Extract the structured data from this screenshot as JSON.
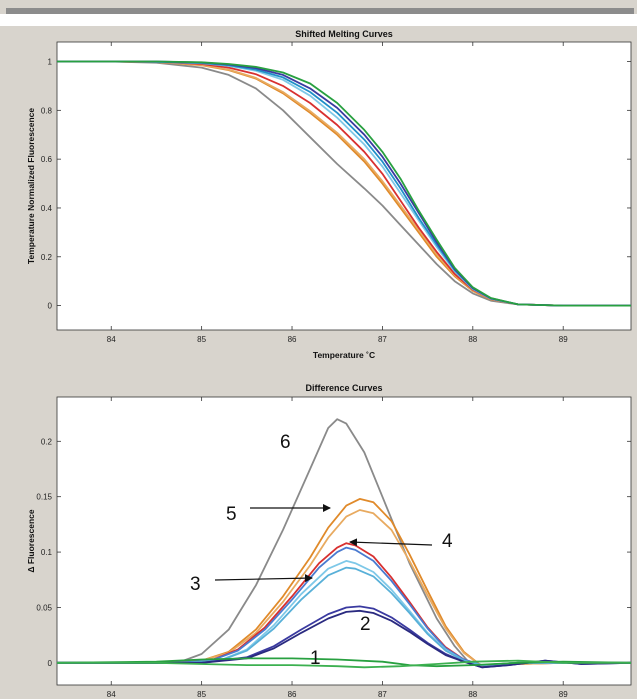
{
  "chart_data": [
    {
      "type": "line",
      "title": "Shifted Melting Curves",
      "xlabel": "Temperature ˚C",
      "ylabel": "Temperature Normalized Fluorescence",
      "xlim": [
        83.4,
        89.75
      ],
      "ylim": [
        -0.1,
        1.08
      ],
      "xticks": [
        "84",
        "85",
        "86",
        "87",
        "88",
        "89"
      ],
      "yticks": [
        "0",
        "0.2",
        "0.4",
        "0.6",
        "0.8",
        "1"
      ],
      "grid": false,
      "series": [
        {
          "color": "#8a8a8a",
          "x": [
            83.4,
            84,
            84.5,
            85,
            85.3,
            85.6,
            85.9,
            86.2,
            86.5,
            86.8,
            87,
            87.2,
            87.4,
            87.6,
            87.8,
            88,
            88.2,
            88.5,
            89,
            89.75
          ],
          "y": [
            1,
            1,
            0.995,
            0.975,
            0.945,
            0.89,
            0.8,
            0.69,
            0.58,
            0.48,
            0.41,
            0.33,
            0.25,
            0.17,
            0.1,
            0.05,
            0.02,
            0.005,
            0,
            0
          ]
        },
        {
          "color": "#e08a2a",
          "x": [
            83.4,
            84,
            84.5,
            85,
            85.3,
            85.6,
            85.9,
            86.2,
            86.5,
            86.8,
            87,
            87.2,
            87.4,
            87.6,
            87.8,
            88,
            88.2,
            88.5,
            89,
            89.75
          ],
          "y": [
            1,
            1,
            0.998,
            0.985,
            0.965,
            0.93,
            0.87,
            0.79,
            0.7,
            0.59,
            0.5,
            0.4,
            0.3,
            0.2,
            0.12,
            0.06,
            0.025,
            0.005,
            0,
            0
          ]
        },
        {
          "color": "#e8aa60",
          "x": [
            83.4,
            84,
            84.5,
            85,
            85.3,
            85.6,
            85.9,
            86.2,
            86.5,
            86.8,
            87,
            87.2,
            87.4,
            87.6,
            87.8,
            88,
            88.2,
            88.5,
            89,
            89.75
          ],
          "y": [
            1,
            1,
            0.998,
            0.986,
            0.967,
            0.933,
            0.875,
            0.797,
            0.708,
            0.6,
            0.51,
            0.41,
            0.31,
            0.21,
            0.125,
            0.062,
            0.026,
            0.005,
            0,
            0
          ]
        },
        {
          "color": "#d83030",
          "x": [
            83.4,
            84,
            84.5,
            85,
            85.3,
            85.6,
            85.9,
            86.2,
            86.5,
            86.8,
            87,
            87.2,
            87.4,
            87.6,
            87.8,
            88,
            88.2,
            88.5,
            89,
            89.75
          ],
          "y": [
            1,
            1,
            0.999,
            0.99,
            0.975,
            0.948,
            0.9,
            0.83,
            0.74,
            0.63,
            0.54,
            0.43,
            0.32,
            0.22,
            0.13,
            0.065,
            0.027,
            0.005,
            0,
            0
          ]
        },
        {
          "color": "#7ec8e8",
          "x": [
            83.4,
            84,
            84.5,
            85,
            85.3,
            85.6,
            85.9,
            86.2,
            86.5,
            86.8,
            87,
            87.2,
            87.4,
            87.6,
            87.8,
            88,
            88.2,
            88.5,
            89,
            89.75
          ],
          "y": [
            1,
            1,
            0.999,
            0.993,
            0.982,
            0.962,
            0.925,
            0.86,
            0.77,
            0.66,
            0.57,
            0.46,
            0.35,
            0.24,
            0.14,
            0.068,
            0.028,
            0.005,
            0,
            0
          ]
        },
        {
          "color": "#2090c8",
          "x": [
            83.4,
            84,
            84.5,
            85,
            85.3,
            85.6,
            85.9,
            86.2,
            86.5,
            86.8,
            87,
            87.2,
            87.4,
            87.6,
            87.8,
            88,
            88.2,
            88.5,
            89,
            89.75
          ],
          "y": [
            1,
            1,
            0.999,
            0.994,
            0.985,
            0.967,
            0.935,
            0.875,
            0.79,
            0.68,
            0.59,
            0.48,
            0.36,
            0.25,
            0.145,
            0.07,
            0.029,
            0.005,
            0,
            0
          ]
        },
        {
          "color": "#3a3aa0",
          "x": [
            83.4,
            84,
            84.5,
            85,
            85.3,
            85.6,
            85.9,
            86.2,
            86.5,
            86.8,
            87,
            87.2,
            87.4,
            87.6,
            87.8,
            88,
            88.2,
            88.5,
            89,
            89.75
          ],
          "y": [
            1,
            1,
            1,
            0.996,
            0.988,
            0.973,
            0.945,
            0.89,
            0.81,
            0.7,
            0.61,
            0.5,
            0.38,
            0.26,
            0.15,
            0.072,
            0.03,
            0.005,
            0,
            0
          ]
        },
        {
          "color": "#28a040",
          "x": [
            83.4,
            84,
            84.5,
            85,
            85.3,
            85.6,
            85.9,
            86.2,
            86.5,
            86.8,
            87,
            87.2,
            87.4,
            87.6,
            87.8,
            88,
            88.2,
            88.5,
            89,
            89.75
          ],
          "y": [
            1,
            1,
            1,
            0.997,
            0.99,
            0.978,
            0.955,
            0.91,
            0.83,
            0.72,
            0.63,
            0.52,
            0.39,
            0.27,
            0.155,
            0.075,
            0.031,
            0.005,
            0,
            0
          ]
        }
      ],
      "annotations": []
    },
    {
      "type": "line",
      "title": "Difference Curves",
      "xlabel": "",
      "ylabel": "Δ Fluorescence",
      "xlim": [
        83.4,
        89.75
      ],
      "ylim": [
        -0.02,
        0.24
      ],
      "xticks": [
        "84",
        "85",
        "86",
        "87",
        "88",
        "89"
      ],
      "yticks": [
        "0",
        "0.05",
        "0.1",
        "0.15",
        "0.2"
      ],
      "grid": false,
      "series": [
        {
          "color": "#8a8a8a",
          "x": [
            83.4,
            84.5,
            84.8,
            85,
            85.3,
            85.6,
            85.9,
            86.2,
            86.4,
            86.5,
            86.6,
            86.8,
            87,
            87.3,
            87.6,
            87.8,
            87.95,
            88.1,
            88.5,
            89,
            89.75
          ],
          "y": [
            0,
            0,
            0.002,
            0.008,
            0.03,
            0.07,
            0.12,
            0.175,
            0.212,
            0.22,
            0.216,
            0.19,
            0.15,
            0.09,
            0.04,
            0.015,
            0.001,
            -0.003,
            -0.001,
            0,
            0
          ]
        },
        {
          "color": "#e08a2a",
          "x": [
            83.4,
            84.6,
            85,
            85.3,
            85.6,
            85.9,
            86.2,
            86.4,
            86.6,
            86.75,
            86.9,
            87.1,
            87.3,
            87.5,
            87.7,
            87.9,
            88.1,
            88.5,
            89,
            89.75
          ],
          "y": [
            0,
            0,
            0.002,
            0.01,
            0.03,
            0.06,
            0.095,
            0.122,
            0.142,
            0.148,
            0.145,
            0.128,
            0.098,
            0.065,
            0.033,
            0.01,
            -0.003,
            -0.001,
            0,
            0
          ]
        },
        {
          "color": "#e8aa60",
          "x": [
            83.4,
            84.6,
            85,
            85.3,
            85.6,
            85.9,
            86.2,
            86.4,
            86.6,
            86.75,
            86.9,
            87.1,
            87.3,
            87.5,
            87.7,
            87.9,
            88.1,
            88.5,
            89,
            89.75
          ],
          "y": [
            0,
            0,
            0.002,
            0.009,
            0.027,
            0.055,
            0.088,
            0.113,
            0.132,
            0.138,
            0.135,
            0.12,
            0.092,
            0.061,
            0.031,
            0.009,
            -0.003,
            -0.001,
            0,
            0
          ]
        },
        {
          "color": "#d83030",
          "x": [
            83.4,
            84.7,
            85.1,
            85.4,
            85.7,
            86,
            86.3,
            86.5,
            86.6,
            86.7,
            86.9,
            87.1,
            87.3,
            87.5,
            87.7,
            87.9,
            88.1,
            88.5,
            89,
            89.75
          ],
          "y": [
            0,
            0,
            0.002,
            0.012,
            0.032,
            0.06,
            0.09,
            0.104,
            0.108,
            0.106,
            0.096,
            0.077,
            0.055,
            0.032,
            0.014,
            0.003,
            -0.002,
            0,
            0,
            0
          ]
        },
        {
          "color": "#4a7ad0",
          "x": [
            83.4,
            84.7,
            85.1,
            85.4,
            85.7,
            86,
            86.3,
            86.5,
            86.6,
            86.7,
            86.9,
            87.1,
            87.3,
            87.5,
            87.7,
            87.9,
            88.1,
            88.5,
            89,
            89.75
          ],
          "y": [
            0,
            0,
            0.002,
            0.011,
            0.03,
            0.057,
            0.086,
            0.1,
            0.104,
            0.102,
            0.092,
            0.074,
            0.053,
            0.031,
            0.013,
            0.003,
            -0.002,
            0,
            0,
            0
          ]
        },
        {
          "color": "#7ec8e8",
          "x": [
            83.4,
            84.8,
            85.2,
            85.5,
            85.8,
            86.1,
            86.4,
            86.6,
            86.7,
            86.9,
            87.1,
            87.3,
            87.5,
            87.7,
            87.9,
            88.1,
            88.5,
            89,
            89.75
          ],
          "y": [
            0,
            0,
            0.002,
            0.012,
            0.034,
            0.062,
            0.085,
            0.092,
            0.09,
            0.082,
            0.066,
            0.047,
            0.027,
            0.012,
            0.002,
            -0.002,
            0,
            0,
            0
          ]
        },
        {
          "color": "#58b0d8",
          "x": [
            83.4,
            84.8,
            85.2,
            85.5,
            85.8,
            86.1,
            86.4,
            86.6,
            86.7,
            86.9,
            87.1,
            87.3,
            87.5,
            87.7,
            87.9,
            88.1,
            88.5,
            89,
            89.75
          ],
          "y": [
            0,
            0,
            0.002,
            0.011,
            0.031,
            0.057,
            0.079,
            0.086,
            0.085,
            0.078,
            0.063,
            0.045,
            0.026,
            0.011,
            0.002,
            -0.002,
            0,
            0,
            0
          ]
        },
        {
          "color": "#3a3aa0",
          "x": [
            83.4,
            85,
            85.5,
            85.8,
            86.1,
            86.4,
            86.6,
            86.75,
            86.9,
            87.1,
            87.3,
            87.5,
            87.7,
            87.9,
            88.1,
            88.4,
            88.8,
            89.2,
            89.75
          ],
          "y": [
            0,
            0,
            0.005,
            0.015,
            0.03,
            0.044,
            0.05,
            0.051,
            0.049,
            0.041,
            0.03,
            0.018,
            0.008,
            0.001,
            -0.004,
            -0.002,
            0.002,
            -0.001,
            0
          ]
        },
        {
          "color": "#2a2a80",
          "x": [
            83.4,
            85,
            85.5,
            85.8,
            86.1,
            86.4,
            86.6,
            86.75,
            86.9,
            87.1,
            87.3,
            87.5,
            87.7,
            87.9,
            88.1,
            88.4,
            88.8,
            89.2,
            89.75
          ],
          "y": [
            0,
            0,
            0.004,
            0.013,
            0.027,
            0.04,
            0.046,
            0.047,
            0.045,
            0.038,
            0.028,
            0.017,
            0.007,
            0.001,
            -0.004,
            -0.002,
            0.002,
            -0.001,
            0
          ]
        },
        {
          "color": "#28a040",
          "x": [
            83.4,
            84.5,
            85,
            85.5,
            86,
            86.5,
            87,
            87.3,
            87.6,
            88,
            88.5,
            89,
            89.75
          ],
          "y": [
            0,
            0.001,
            0.003,
            0.004,
            0.004,
            0.003,
            0.001,
            -0.002,
            -0.003,
            -0.002,
            0,
            0.001,
            0
          ]
        },
        {
          "color": "#3cb050",
          "x": [
            83.4,
            84.5,
            85,
            85.5,
            86,
            86.5,
            86.8,
            87.2,
            87.6,
            88,
            88.5,
            89,
            89.75
          ],
          "y": [
            0,
            0,
            -0.001,
            -0.002,
            -0.002,
            -0.003,
            -0.004,
            -0.003,
            -0.001,
            0.001,
            0.002,
            0,
            0
          ]
        }
      ],
      "annotations": [
        {
          "text": "6"
        },
        {
          "text": "5"
        },
        {
          "text": "4"
        },
        {
          "text": "3"
        },
        {
          "text": "2"
        },
        {
          "text": "1"
        }
      ]
    }
  ]
}
